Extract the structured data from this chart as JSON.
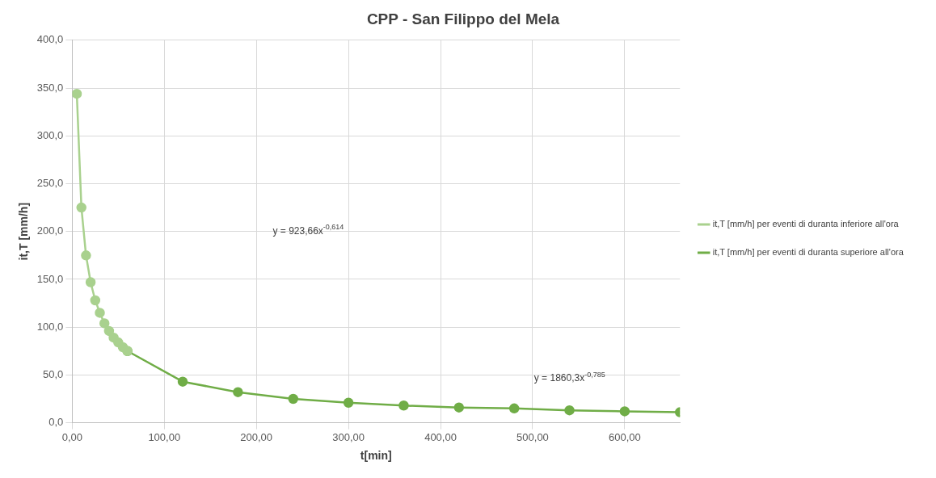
{
  "chart_data": {
    "type": "line",
    "title": "CPP - San Filippo del Mela",
    "xlabel": "t[min]",
    "ylabel": "it,T [mm/h]",
    "series": [
      {
        "name": "it,T [mm/h] per eventi di duranta inferiore all'ora",
        "color": "#a9d18e",
        "x": [
          5,
          10,
          15,
          20,
          25,
          30,
          35,
          40,
          45,
          50,
          55,
          60
        ],
        "values": [
          344,
          225,
          175,
          147,
          128,
          115,
          104,
          96,
          89,
          84,
          79,
          75
        ]
      },
      {
        "name": "it,T [mm/h] per eventi di duranta superiore all'ora",
        "color": "#70ad47",
        "x": [
          60,
          120,
          180,
          240,
          300,
          360,
          420,
          480,
          540,
          600,
          660
        ],
        "values": [
          75,
          43,
          32,
          25,
          21,
          18,
          16,
          15,
          13,
          12,
          11
        ]
      }
    ],
    "xlim": [
      0,
      660
    ],
    "xticks": [
      {
        "value": 0,
        "label": "0,00"
      },
      {
        "value": 100,
        "label": "100,00"
      },
      {
        "value": 200,
        "label": "200,00"
      },
      {
        "value": 300,
        "label": "300,00"
      },
      {
        "value": 400,
        "label": "400,00"
      },
      {
        "value": 500,
        "label": "500,00"
      },
      {
        "value": 600,
        "label": "600,00"
      }
    ],
    "ylim": [
      0,
      400
    ],
    "yticks": [
      {
        "value": 0,
        "label": "0,0"
      },
      {
        "value": 50,
        "label": "50,0"
      },
      {
        "value": 100,
        "label": "100,0"
      },
      {
        "value": 150,
        "label": "150,0"
      },
      {
        "value": 200,
        "label": "200,0"
      },
      {
        "value": 250,
        "label": "250,0"
      },
      {
        "value": 300,
        "label": "300,0"
      },
      {
        "value": 350,
        "label": "350,0"
      },
      {
        "value": 400,
        "label": "400,0"
      }
    ],
    "annotations": [
      "y = 923,66x$^{-0,614}$",
      "y = 1860,3x$^{-0,785}$"
    ],
    "grid": true,
    "legend": "right",
    "marker": "circle",
    "line_style": "solid"
  }
}
